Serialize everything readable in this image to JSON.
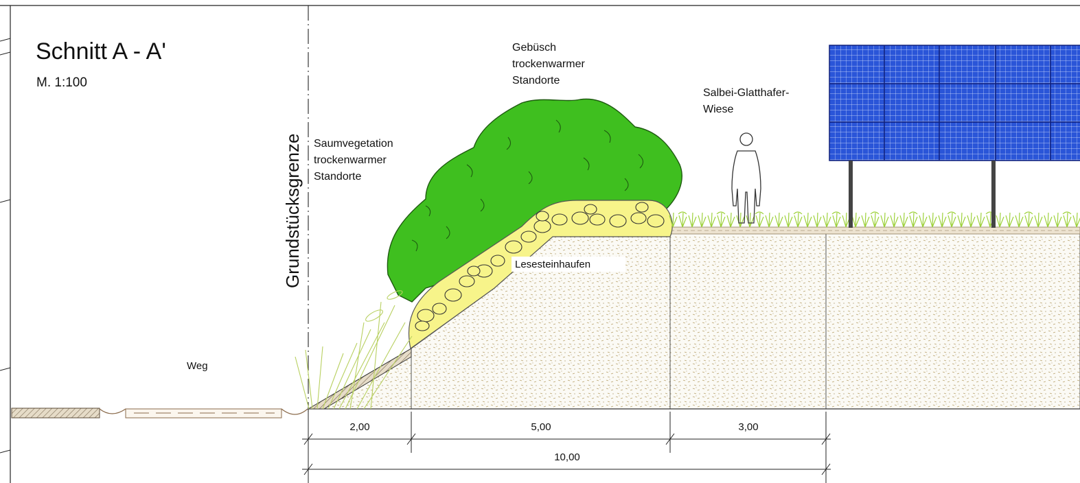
{
  "drawing": {
    "title": "Schnitt A - A'",
    "scale": "M. 1:100",
    "boundary_label": "Grundstücksgrenze"
  },
  "labels": {
    "saum": [
      "Saumvegetation",
      "trockenwarmer",
      "Standorte"
    ],
    "gebuesch": [
      "Gebüsch",
      "trockenwarmer",
      "Standorte"
    ],
    "wiese": [
      "Salbei-Glatthafer-",
      "Wiese"
    ],
    "lesestein": "Lesesteinhaufen",
    "weg": "Weg"
  },
  "dimensions": {
    "seg1": "2,00",
    "seg2": "5,00",
    "seg3": "3,00",
    "total": "10,00"
  },
  "colors": {
    "bush": "#3fbf1f",
    "stones": "#f7f48a",
    "soil_dots": "#b8a26a",
    "panel": "#2a55d8",
    "grass": "#9dd13a"
  }
}
